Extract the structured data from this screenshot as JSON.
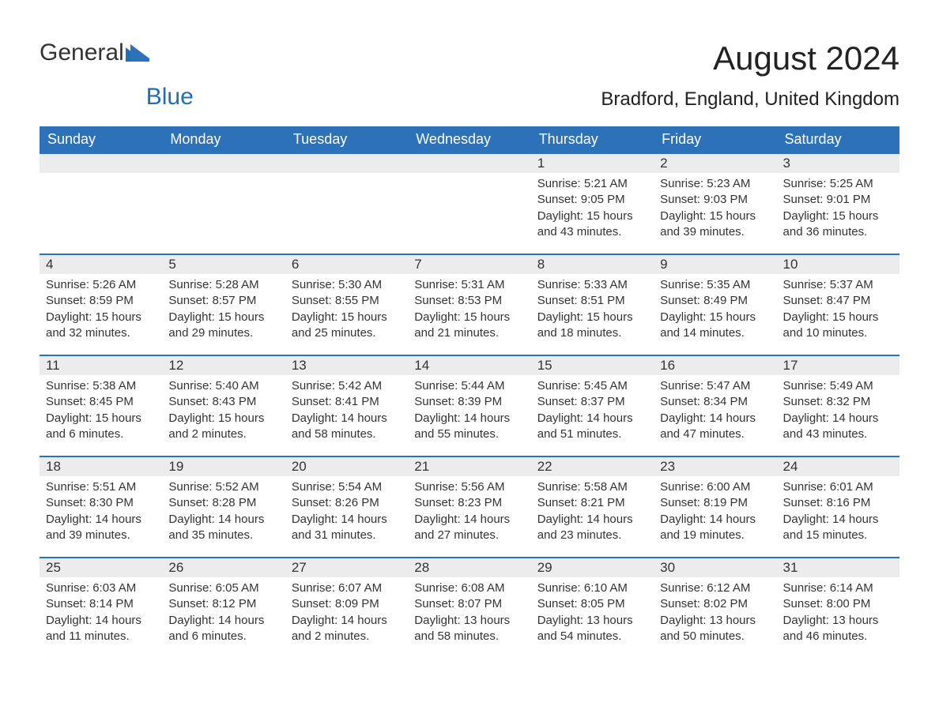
{
  "logo": {
    "text_general": "General",
    "text_blue": "Blue"
  },
  "header": {
    "month_title": "August 2024",
    "location": "Bradford, England, United Kingdom"
  },
  "colors": {
    "header_bg": "#2d72b8",
    "header_text": "#ffffff",
    "daynum_bg": "#ececec",
    "row_border": "#2d72b8",
    "body_text": "#333333",
    "logo_blue": "#1f6fb2",
    "page_bg": "#ffffff"
  },
  "calendar": {
    "type": "table",
    "month": "August",
    "year": 2024,
    "start_weekday_index": 4,
    "num_days": 31,
    "columns": [
      "Sunday",
      "Monday",
      "Tuesday",
      "Wednesday",
      "Thursday",
      "Friday",
      "Saturday"
    ],
    "days": [
      {
        "n": 1,
        "sunrise": "5:21 AM",
        "sunset": "9:05 PM",
        "daylight": "15 hours and 43 minutes."
      },
      {
        "n": 2,
        "sunrise": "5:23 AM",
        "sunset": "9:03 PM",
        "daylight": "15 hours and 39 minutes."
      },
      {
        "n": 3,
        "sunrise": "5:25 AM",
        "sunset": "9:01 PM",
        "daylight": "15 hours and 36 minutes."
      },
      {
        "n": 4,
        "sunrise": "5:26 AM",
        "sunset": "8:59 PM",
        "daylight": "15 hours and 32 minutes."
      },
      {
        "n": 5,
        "sunrise": "5:28 AM",
        "sunset": "8:57 PM",
        "daylight": "15 hours and 29 minutes."
      },
      {
        "n": 6,
        "sunrise": "5:30 AM",
        "sunset": "8:55 PM",
        "daylight": "15 hours and 25 minutes."
      },
      {
        "n": 7,
        "sunrise": "5:31 AM",
        "sunset": "8:53 PM",
        "daylight": "15 hours and 21 minutes."
      },
      {
        "n": 8,
        "sunrise": "5:33 AM",
        "sunset": "8:51 PM",
        "daylight": "15 hours and 18 minutes."
      },
      {
        "n": 9,
        "sunrise": "5:35 AM",
        "sunset": "8:49 PM",
        "daylight": "15 hours and 14 minutes."
      },
      {
        "n": 10,
        "sunrise": "5:37 AM",
        "sunset": "8:47 PM",
        "daylight": "15 hours and 10 minutes."
      },
      {
        "n": 11,
        "sunrise": "5:38 AM",
        "sunset": "8:45 PM",
        "daylight": "15 hours and 6 minutes."
      },
      {
        "n": 12,
        "sunrise": "5:40 AM",
        "sunset": "8:43 PM",
        "daylight": "15 hours and 2 minutes."
      },
      {
        "n": 13,
        "sunrise": "5:42 AM",
        "sunset": "8:41 PM",
        "daylight": "14 hours and 58 minutes."
      },
      {
        "n": 14,
        "sunrise": "5:44 AM",
        "sunset": "8:39 PM",
        "daylight": "14 hours and 55 minutes."
      },
      {
        "n": 15,
        "sunrise": "5:45 AM",
        "sunset": "8:37 PM",
        "daylight": "14 hours and 51 minutes."
      },
      {
        "n": 16,
        "sunrise": "5:47 AM",
        "sunset": "8:34 PM",
        "daylight": "14 hours and 47 minutes."
      },
      {
        "n": 17,
        "sunrise": "5:49 AM",
        "sunset": "8:32 PM",
        "daylight": "14 hours and 43 minutes."
      },
      {
        "n": 18,
        "sunrise": "5:51 AM",
        "sunset": "8:30 PM",
        "daylight": "14 hours and 39 minutes."
      },
      {
        "n": 19,
        "sunrise": "5:52 AM",
        "sunset": "8:28 PM",
        "daylight": "14 hours and 35 minutes."
      },
      {
        "n": 20,
        "sunrise": "5:54 AM",
        "sunset": "8:26 PM",
        "daylight": "14 hours and 31 minutes."
      },
      {
        "n": 21,
        "sunrise": "5:56 AM",
        "sunset": "8:23 PM",
        "daylight": "14 hours and 27 minutes."
      },
      {
        "n": 22,
        "sunrise": "5:58 AM",
        "sunset": "8:21 PM",
        "daylight": "14 hours and 23 minutes."
      },
      {
        "n": 23,
        "sunrise": "6:00 AM",
        "sunset": "8:19 PM",
        "daylight": "14 hours and 19 minutes."
      },
      {
        "n": 24,
        "sunrise": "6:01 AM",
        "sunset": "8:16 PM",
        "daylight": "14 hours and 15 minutes."
      },
      {
        "n": 25,
        "sunrise": "6:03 AM",
        "sunset": "8:14 PM",
        "daylight": "14 hours and 11 minutes."
      },
      {
        "n": 26,
        "sunrise": "6:05 AM",
        "sunset": "8:12 PM",
        "daylight": "14 hours and 6 minutes."
      },
      {
        "n": 27,
        "sunrise": "6:07 AM",
        "sunset": "8:09 PM",
        "daylight": "14 hours and 2 minutes."
      },
      {
        "n": 28,
        "sunrise": "6:08 AM",
        "sunset": "8:07 PM",
        "daylight": "13 hours and 58 minutes."
      },
      {
        "n": 29,
        "sunrise": "6:10 AM",
        "sunset": "8:05 PM",
        "daylight": "13 hours and 54 minutes."
      },
      {
        "n": 30,
        "sunrise": "6:12 AM",
        "sunset": "8:02 PM",
        "daylight": "13 hours and 50 minutes."
      },
      {
        "n": 31,
        "sunrise": "6:14 AM",
        "sunset": "8:00 PM",
        "daylight": "13 hours and 46 minutes."
      }
    ],
    "labels": {
      "sunrise_prefix": "Sunrise: ",
      "sunset_prefix": "Sunset: ",
      "daylight_prefix": "Daylight: "
    },
    "cell_fontsize": 15,
    "header_fontsize": 18,
    "title_fontsize": 42,
    "location_fontsize": 24
  }
}
